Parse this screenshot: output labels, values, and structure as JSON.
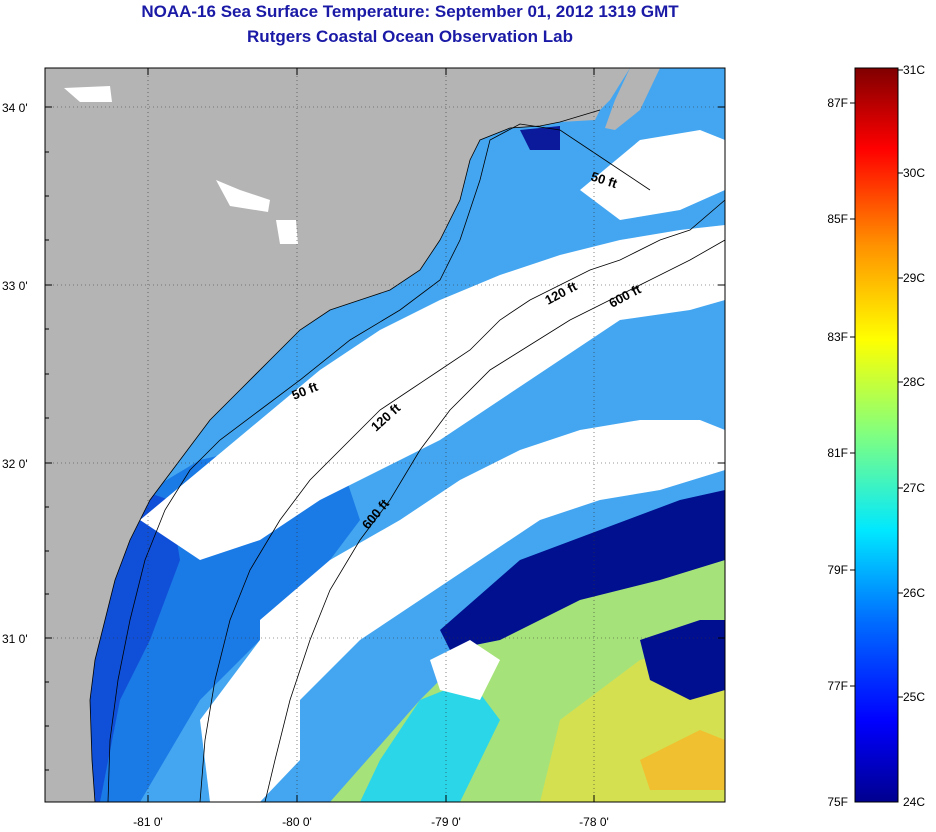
{
  "title": "NOAA-16 Sea Surface Temperature:  September 01, 2012 1319 GMT",
  "subtitle": "Rutgers Coastal Ocean Observation Lab",
  "lat_labels": [
    "34 0'",
    "33 0'",
    "32 0'",
    "31 0'"
  ],
  "lon_labels": [
    "-81 0'",
    "-80 0'",
    "-79 0'",
    "-78 0'"
  ],
  "contour_labels": {
    "c50_north": "50 ft",
    "c50_south": "50 ft",
    "c120_north": "120 ft",
    "c120_south": "120 ft",
    "c600_north": "600 ft",
    "c600_south": "600 ft"
  },
  "colorbar": {
    "fahrenheit_labels": [
      "87F",
      "85F",
      "83F",
      "81F",
      "79F",
      "77F",
      "75F"
    ],
    "celsius_labels": [
      "31C",
      "30C",
      "29C",
      "28C",
      "27C",
      "26C",
      "25C",
      "24C"
    ],
    "colors": [
      "#00008f",
      "#0000ff",
      "#0080ff",
      "#00ffff",
      "#80ff80",
      "#ffff00",
      "#ff8000",
      "#ff0000",
      "#800000"
    ]
  },
  "colors": {
    "land": "#b4b4b4",
    "cloud": "#ffffff",
    "title": "#1a1aa6"
  }
}
